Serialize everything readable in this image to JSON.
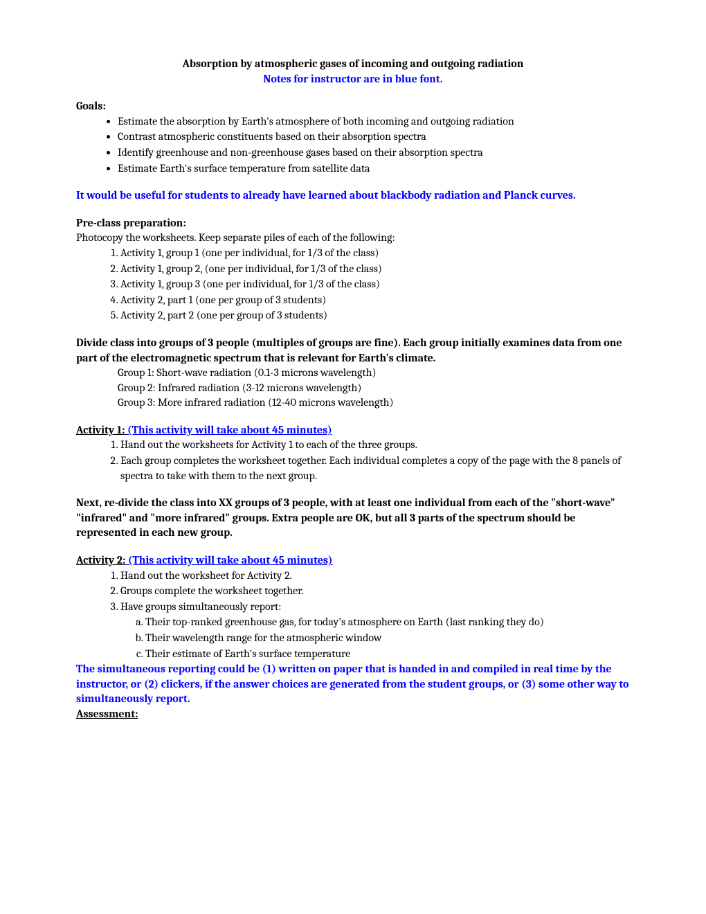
{
  "title": "Absorption by atmospheric gases of incoming and outgoing radiation",
  "subtitle": "Notes for instructor are in blue font.",
  "goals_heading": "Goals:",
  "goals": [
    "Estimate the absorption by Earth's atmosphere of both incoming and outgoing radiation",
    "Contrast atmospheric constituents based on their absorption spectra",
    "Identify greenhouse and non-greenhouse gases based on their absorption spectra",
    "Estimate Earth's surface temperature from satellite data"
  ],
  "prelude_note": "It would be useful for students to already have learned about blackbody radiation and Planck curves.",
  "preclass_heading": "Pre-class preparation:",
  "preclass_intro": "Photocopy the worksheets.  Keep separate piles of each of the following:",
  "preclass_items": [
    "Activity 1, group 1 (one per individual, for 1/3 of the class)",
    "Activity 1, group 2, (one per individual, for 1/3 of the class)",
    "Activity 1, group 3 (one per individual, for 1/3 of the class)",
    "Activity 2, part 1 (one per group of 3 students)",
    "Activity 2, part 2 (one per group of 3 students)"
  ],
  "divide_heading": "Divide class into groups of 3 people (multiples of groups are fine).  Each group initially examines data from one part of the electromagnetic spectrum that is relevant for Earth's climate.",
  "groups": [
    "Group 1:  Short-wave radiation (0.1-3 microns wavelength)",
    "Group 2:  Infrared radiation (3-12 microns wavelength)",
    "Group 3:  More infrared radiation (12-40 microns wavelength)"
  ],
  "activity1_label": "Activity 1:",
  "activity1_time": " (This activity will take about 45 minutes)",
  "activity1_steps": [
    "Hand out the worksheets for Activity 1 to each of the three groups.",
    "Each group completes the worksheet together.  Each individual completes a copy of the page with the 8 panels of spectra to take with them to the next group."
  ],
  "regroup_text": "Next, re-divide the class into XX groups of 3 people, with at least one individual from each of the \"short-wave\" \"infrared\" and  \"more infrared\" groups.  Extra people are OK, but all 3 parts of the spectrum should be represented in each new group.",
  "activity2_label": "Activity 2:",
  "activity2_time": " (This activity will take about 45 minutes)",
  "activity2_steps": [
    "Hand out the worksheet for Activity 2.",
    "Groups complete the worksheet together.",
    "Have groups simultaneously report:"
  ],
  "activity2_substeps": [
    "Their top-ranked greenhouse gas, for today's atmosphere on Earth (last ranking they do)",
    "Their wavelength range for the atmospheric window",
    "Their estimate of Earth's surface temperature"
  ],
  "reporting_note": "The simultaneous reporting could be (1) written on paper that is handed in and compiled in real time by the instructor, or (2) clickers, if the answer choices are generated from the student groups, or (3) some other way to simultaneously report.",
  "assessment_heading": "Assessment:"
}
